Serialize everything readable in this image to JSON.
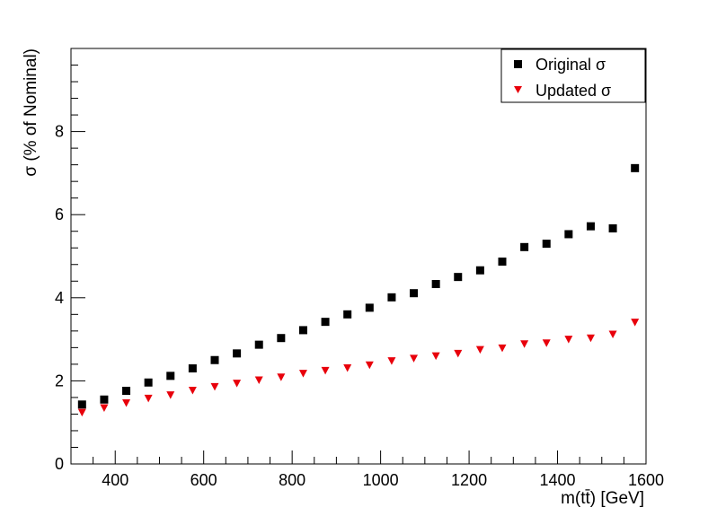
{
  "chart_data": {
    "type": "scatter",
    "title": "",
    "xlabel": "m(tt̄) [GeV]",
    "ylabel": "σ (% of Nominal)",
    "xlim": [
      300,
      1600
    ],
    "ylim": [
      0,
      10
    ],
    "x_ticks": [
      400,
      600,
      800,
      1000,
      1200,
      1400,
      1600
    ],
    "y_ticks": [
      0,
      2,
      4,
      6,
      8
    ],
    "grid": false,
    "legend_position": "top-right",
    "x": [
      325,
      375,
      425,
      475,
      525,
      575,
      625,
      675,
      725,
      775,
      825,
      875,
      925,
      975,
      1025,
      1075,
      1125,
      1175,
      1225,
      1275,
      1325,
      1375,
      1425,
      1475,
      1525,
      1575
    ],
    "series": [
      {
        "name": "Original σ",
        "marker": "square",
        "color": "#000000",
        "values": [
          1.43,
          1.55,
          1.76,
          1.96,
          2.12,
          2.3,
          2.5,
          2.66,
          2.87,
          3.03,
          3.22,
          3.42,
          3.6,
          3.76,
          4.01,
          4.11,
          4.33,
          4.5,
          4.66,
          4.87,
          5.22,
          5.3,
          5.53,
          5.72,
          5.67,
          7.12
        ]
      },
      {
        "name": "Updated σ",
        "marker": "triangle-down",
        "color": "#e8000b",
        "values": [
          1.24,
          1.35,
          1.47,
          1.58,
          1.66,
          1.77,
          1.86,
          1.94,
          2.02,
          2.09,
          2.18,
          2.25,
          2.31,
          2.38,
          2.48,
          2.54,
          2.6,
          2.66,
          2.75,
          2.79,
          2.89,
          2.91,
          3.0,
          3.03,
          3.12,
          3.41
        ]
      }
    ]
  }
}
